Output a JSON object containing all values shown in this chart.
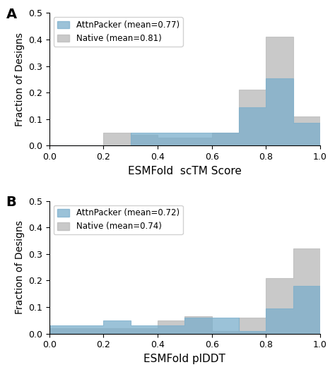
{
  "panel_A": {
    "title_label": "A",
    "xlabel": "ESMFold  scTM Score",
    "ylabel": "Fraction of Designs",
    "ylim": [
      0,
      0.5
    ],
    "xlim": [
      0.0,
      1.0
    ],
    "bin_edges": [
      0.0,
      0.1,
      0.2,
      0.3,
      0.4,
      0.5,
      0.6,
      0.7,
      0.8,
      0.9,
      1.0
    ],
    "attn_values": [
      0.0,
      0.0,
      0.0,
      0.05,
      0.05,
      0.05,
      0.05,
      0.145,
      0.255,
      0.085
    ],
    "native_values": [
      0.0,
      0.0,
      0.05,
      0.04,
      0.03,
      0.03,
      0.05,
      0.21,
      0.41,
      0.11
    ],
    "legend_attn": "AttnPacker (mean=0.77)",
    "legend_native": "Native (mean=0.81)"
  },
  "panel_B": {
    "title_label": "B",
    "xlabel": "ESMFold plDDT",
    "ylabel": "Fraction of Designs",
    "ylim": [
      0,
      0.5
    ],
    "xlim": [
      0.0,
      1.0
    ],
    "bin_edges": [
      0.0,
      0.1,
      0.2,
      0.3,
      0.4,
      0.5,
      0.6,
      0.7,
      0.8,
      0.9,
      1.0
    ],
    "attn_values": [
      0.03,
      0.03,
      0.05,
      0.03,
      0.03,
      0.06,
      0.06,
      0.01,
      0.095,
      0.18
    ],
    "native_values": [
      0.02,
      0.02,
      0.02,
      0.02,
      0.05,
      0.065,
      0.01,
      0.06,
      0.21,
      0.32
    ],
    "legend_attn": "AttnPacker (mean=0.72)",
    "legend_native": "Native (mean=0.74)"
  },
  "attn_color": "#7aaecb",
  "native_color": "#b8b8b8",
  "attn_alpha": 0.75,
  "native_alpha": 0.75,
  "yticks": [
    0.0,
    0.1,
    0.2,
    0.3,
    0.4,
    0.5
  ],
  "xticks": [
    0.0,
    0.2,
    0.4,
    0.6,
    0.8,
    1.0
  ],
  "xlabel_fontsize": 11,
  "ylabel_fontsize": 10,
  "tick_fontsize": 9,
  "legend_fontsize": 8.5
}
